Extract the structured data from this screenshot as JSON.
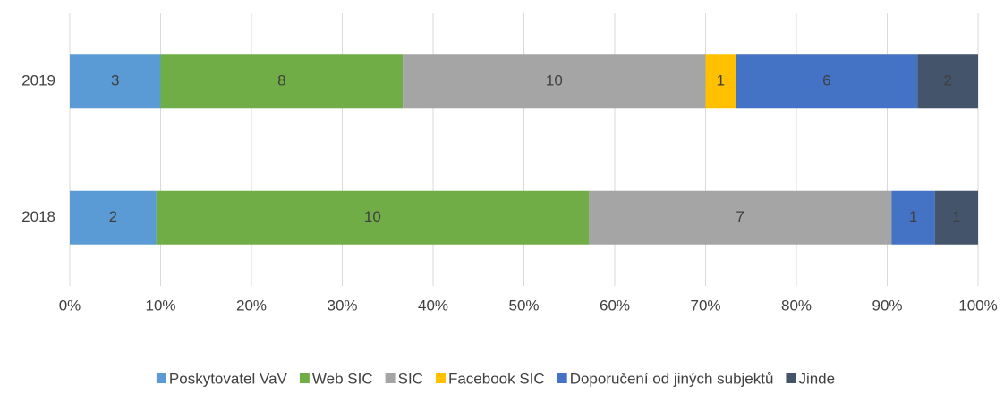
{
  "chart_data": {
    "type": "bar",
    "orientation": "horizontal",
    "stack": "percent",
    "categories": [
      "2018",
      "2019"
    ],
    "series": [
      {
        "name": "Poskytovatel VaV",
        "color": "#5b9bd5",
        "values": [
          2,
          3
        ]
      },
      {
        "name": "Web SIC",
        "color": "#70ad47",
        "values": [
          10,
          8
        ]
      },
      {
        "name": "SIC",
        "color": "#a5a5a5",
        "values": [
          7,
          10
        ]
      },
      {
        "name": "Facebook SIC",
        "color": "#ffc000",
        "values": [
          0,
          1
        ]
      },
      {
        "name": "Doporučení od jiných subjektů",
        "color": "#4472c4",
        "values": [
          1,
          6
        ]
      },
      {
        "name": "Jinde",
        "color": "#44546a",
        "values": [
          1,
          2
        ]
      }
    ],
    "xlim": [
      0,
      100
    ],
    "xticks": [
      {
        "value": 0,
        "label": "0%"
      },
      {
        "value": 10,
        "label": "10%"
      },
      {
        "value": 20,
        "label": "20%"
      },
      {
        "value": 30,
        "label": "30%"
      },
      {
        "value": 40,
        "label": "40%"
      },
      {
        "value": 50,
        "label": "50%"
      },
      {
        "value": 60,
        "label": "60%"
      },
      {
        "value": 70,
        "label": "70%"
      },
      {
        "value": 80,
        "label": "80%"
      },
      {
        "value": 90,
        "label": "90%"
      },
      {
        "value": 100,
        "label": "100%"
      }
    ],
    "grid": true,
    "legend": "bottom"
  }
}
